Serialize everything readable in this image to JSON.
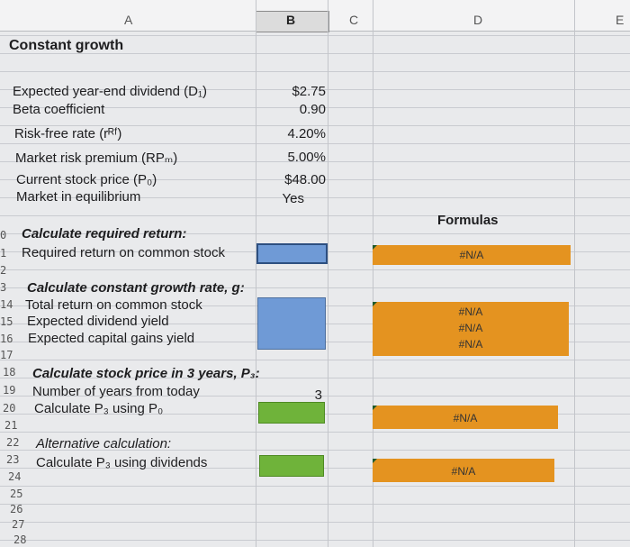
{
  "columns": {
    "a": "A",
    "b": "B",
    "c": "C",
    "d": "D",
    "e": "E"
  },
  "section_title": "Constant growth",
  "inputs": [
    {
      "label": "Expected year-end dividend (D₁)",
      "value": "$2.75"
    },
    {
      "label": "Beta coefficient",
      "value": "0.90"
    },
    {
      "label": "Risk-free rate (rᴿᶠ)",
      "value": "4.20%"
    },
    {
      "label": "Market risk premium (RPₘ)",
      "value": "5.00%"
    },
    {
      "label": "Current stock price (P₀)",
      "value": "$48.00"
    },
    {
      "label": "Market in equilibrium",
      "value": "Yes"
    }
  ],
  "formulas_header": "Formulas",
  "rows": {
    "r10": "0",
    "r11": "1",
    "r12": "2",
    "r13": "3",
    "r14": "14",
    "r15": "15",
    "r16": "16",
    "r17": "17",
    "r18": "18",
    "r19": "19",
    "r20": "20",
    "r21": "21",
    "r22": "22",
    "r23": "23",
    "r24": "24",
    "r25": "25",
    "r26": "26",
    "r27": "27",
    "r28": "28"
  },
  "required_return": {
    "heading": "Calculate required return:",
    "label": "Required return on common stock",
    "formula": "#N/A"
  },
  "growth": {
    "heading": "Calculate constant growth rate, g:",
    "items": [
      {
        "label": "Total return on common stock",
        "formula": "#N/A"
      },
      {
        "label": "Expected dividend yield",
        "formula": "#N/A"
      },
      {
        "label": "Expected capital gains yield",
        "formula": "#N/A"
      }
    ]
  },
  "price": {
    "heading": "Calculate stock price in 3 years, P₃:",
    "years_label": "Number of years from today",
    "years_value": "3",
    "calc_label": "Calculate P₃ using P₀",
    "calc_formula": "#N/A"
  },
  "alternative": {
    "heading": "Alternative calculation:",
    "label": "Calculate P₃ using dividends",
    "formula": "#N/A"
  },
  "colors": {
    "blue": "#6f9ad6",
    "green": "#6fb33a",
    "orange": "#e49320"
  }
}
